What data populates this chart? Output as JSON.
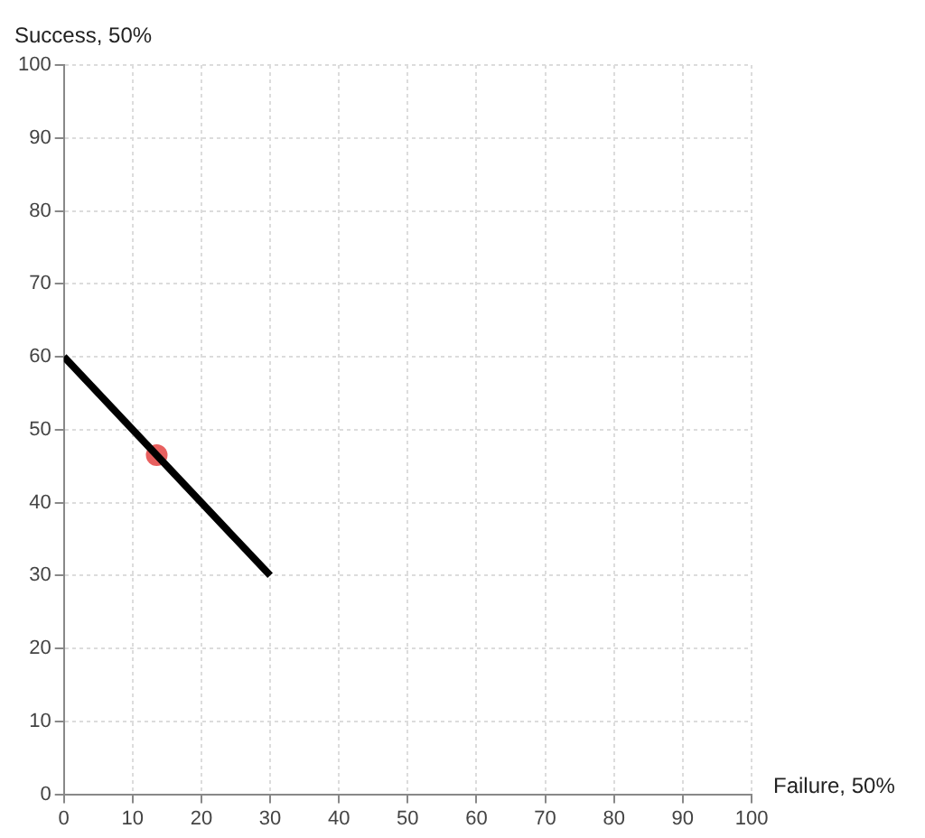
{
  "chart_data": {
    "type": "line",
    "xlabel": "Failure, 50%",
    "ylabel": "Success, 50%",
    "series": [
      {
        "x": [
          0,
          30
        ],
        "values": [
          60,
          30
        ],
        "color": "#000000",
        "marker": "none"
      },
      {
        "type": "scatter",
        "x": [
          13.5
        ],
        "values": [
          46.5
        ],
        "color": "#e8605f",
        "marker": "circle"
      }
    ],
    "xlim": [
      0,
      100
    ],
    "xticks": [
      0,
      10,
      20,
      30,
      40,
      50,
      60,
      70,
      80,
      90,
      100
    ],
    "ylim": [
      0,
      100
    ],
    "yticks": [
      0,
      10,
      20,
      30,
      40,
      50,
      60,
      70,
      80,
      90,
      100
    ],
    "grid": true,
    "legend": false
  }
}
